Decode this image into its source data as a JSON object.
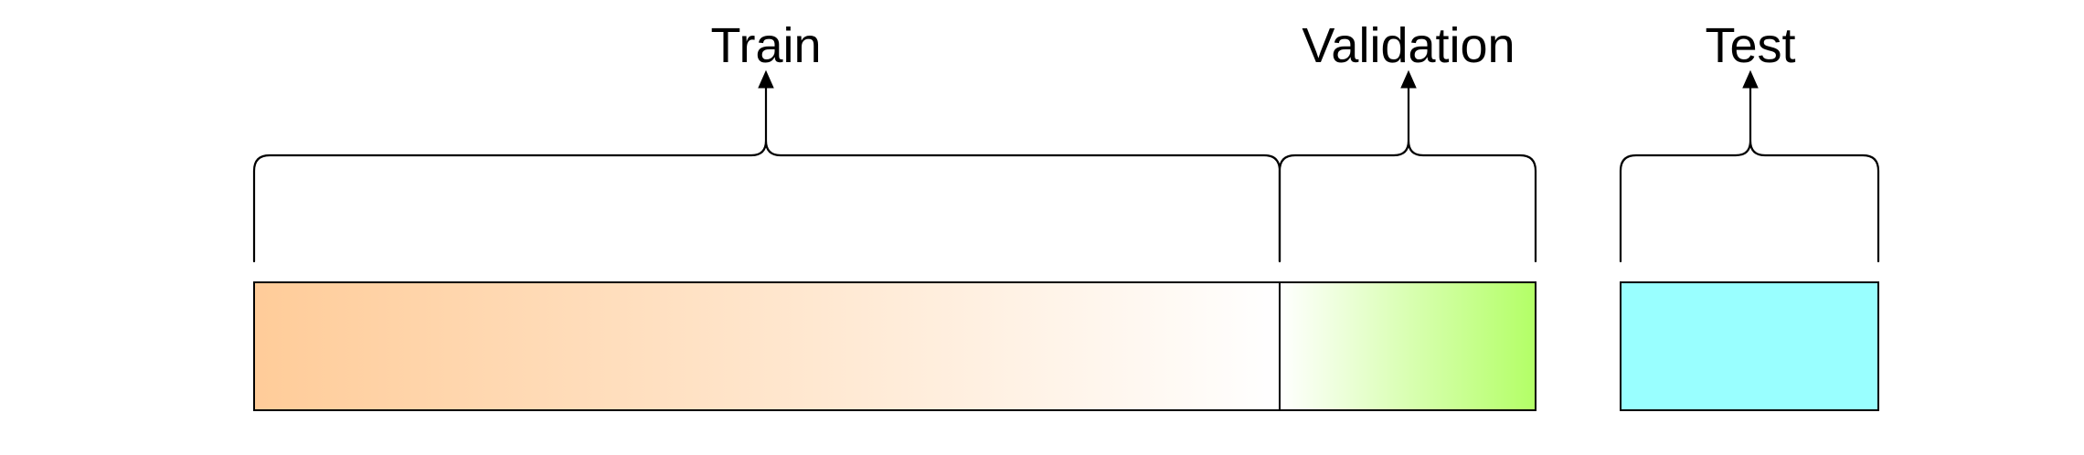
{
  "segments": [
    {
      "key": "train",
      "label": "Train",
      "color_start": "#FFCC99",
      "color_end": "#FFFFFF"
    },
    {
      "key": "validation",
      "label": "Validation",
      "color_start": "#FFFFFF",
      "color_end": "#B3FF66"
    },
    {
      "key": "test",
      "label": "Test",
      "color_start": "#99FFFF",
      "color_end": "#99FFFF"
    }
  ],
  "colors": {
    "stroke": "#000000",
    "background": "#FFFFFF"
  }
}
